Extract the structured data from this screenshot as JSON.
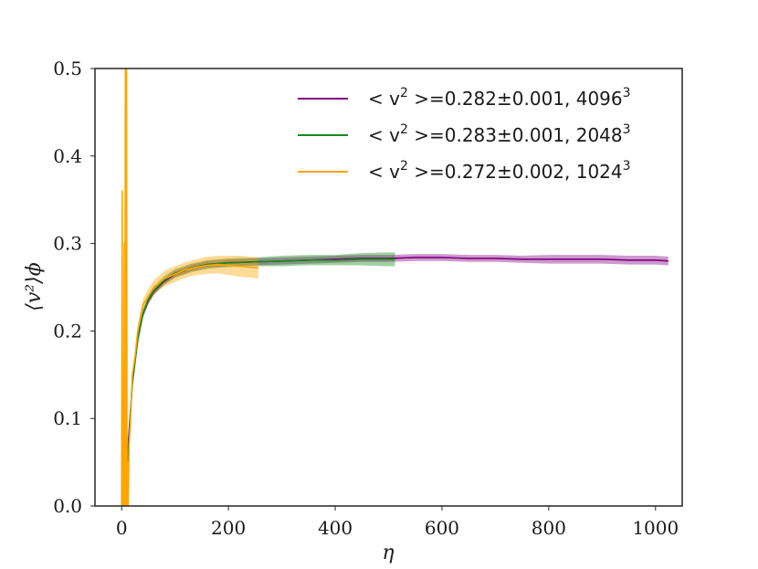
{
  "chart_data": {
    "type": "line",
    "xlabel": "η",
    "ylabel": "⟨v²⟩ϕ",
    "xlim": [
      -50,
      1050
    ],
    "ylim": [
      0.0,
      0.5
    ],
    "xticks": [
      0,
      200,
      400,
      600,
      800,
      1000
    ],
    "yticks": [
      0.0,
      0.1,
      0.2,
      0.3,
      0.4,
      0.5
    ],
    "ytick_labels": [
      "0.0",
      "0.1",
      "0.2",
      "0.3",
      "0.4",
      "0.5"
    ],
    "grid": false,
    "legend_position": "top-right",
    "series": [
      {
        "name": "< v² >=0.282±0.001, 4096³",
        "legend": {
          "prefix": "< v",
          "sup": "2",
          "mid": " >=0.282±0.001, 4096",
          "sup2": "3"
        },
        "color": "#800080",
        "x": [
          0,
          5,
          10,
          20,
          30,
          40,
          50,
          60,
          80,
          100,
          130,
          160,
          200,
          250,
          300,
          350,
          400,
          450,
          500,
          550,
          600,
          650,
          700,
          750,
          800,
          850,
          900,
          950,
          1000,
          1024
        ],
        "y": [
          0.0,
          0.0,
          0.05,
          0.14,
          0.19,
          0.22,
          0.235,
          0.245,
          0.257,
          0.265,
          0.272,
          0.276,
          0.278,
          0.279,
          0.28,
          0.281,
          0.282,
          0.283,
          0.283,
          0.284,
          0.284,
          0.283,
          0.283,
          0.282,
          0.282,
          0.282,
          0.282,
          0.281,
          0.281,
          0.28
        ],
        "band": [
          0.0,
          0.0,
          0.0,
          0.004,
          0.004,
          0.004,
          0.004,
          0.004,
          0.004,
          0.004,
          0.004,
          0.004,
          0.004,
          0.004,
          0.004,
          0.004,
          0.004,
          0.004,
          0.004,
          0.004,
          0.004,
          0.004,
          0.004,
          0.004,
          0.005,
          0.005,
          0.005,
          0.005,
          0.005,
          0.005
        ]
      },
      {
        "name": "< v² >=0.283±0.001, 2048³",
        "legend": {
          "prefix": "< v",
          "sup": "2",
          "mid": " >=0.283±0.001, 2048",
          "sup2": "3"
        },
        "color": "#1a8a1a",
        "x": [
          0,
          5,
          10,
          15,
          20,
          30,
          40,
          50,
          60,
          80,
          100,
          130,
          160,
          200,
          250,
          300,
          350,
          400,
          450,
          500,
          512
        ],
        "y": [
          0.0,
          0.0,
          0.03,
          0.09,
          0.14,
          0.19,
          0.22,
          0.236,
          0.246,
          0.258,
          0.266,
          0.272,
          0.276,
          0.278,
          0.279,
          0.28,
          0.281,
          0.281,
          0.282,
          0.282,
          0.282
        ],
        "band": [
          0.0,
          0.0,
          0.0,
          0.004,
          0.005,
          0.005,
          0.005,
          0.005,
          0.005,
          0.005,
          0.005,
          0.005,
          0.005,
          0.005,
          0.005,
          0.006,
          0.006,
          0.006,
          0.007,
          0.008,
          0.008
        ]
      },
      {
        "name": "< v² >=0.272±0.002, 1024³",
        "legend": {
          "prefix": "< v",
          "sup": "2",
          "mid": " >=0.272±0.002, 1024",
          "sup2": "3"
        },
        "color": "#ffa500",
        "x": [
          0,
          1,
          2,
          3,
          4,
          5,
          6,
          7,
          8,
          9,
          10,
          11,
          12,
          14,
          16,
          18,
          20,
          25,
          30,
          35,
          40,
          50,
          60,
          70,
          80,
          100,
          120,
          140,
          160,
          180,
          200,
          220,
          240,
          256
        ],
        "y": [
          0.0,
          0.36,
          0.0,
          0.12,
          0.0,
          0.3,
          0.0,
          0.5,
          0.0,
          0.5,
          0.0,
          0.05,
          0.0,
          0.07,
          0.09,
          0.12,
          0.15,
          0.17,
          0.2,
          0.215,
          0.23,
          0.24,
          0.25,
          0.255,
          0.26,
          0.265,
          0.27,
          0.273,
          0.275,
          0.276,
          0.275,
          0.274,
          0.273,
          0.272
        ],
        "band": [
          0.0,
          0.0,
          0.0,
          0.0,
          0.0,
          0.0,
          0.0,
          0.0,
          0.0,
          0.0,
          0.0,
          0.0,
          0.0,
          0.003,
          0.004,
          0.005,
          0.006,
          0.007,
          0.007,
          0.007,
          0.007,
          0.008,
          0.008,
          0.008,
          0.009,
          0.009,
          0.009,
          0.009,
          0.01,
          0.01,
          0.011,
          0.012,
          0.012,
          0.012
        ]
      }
    ]
  }
}
